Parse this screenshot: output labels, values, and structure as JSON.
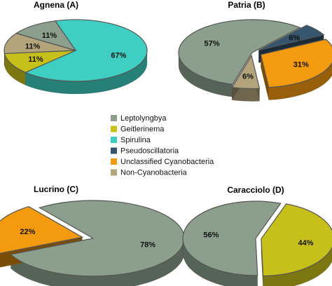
{
  "legend": [
    {
      "name": "Leptolyngbya",
      "color": "#8b9f8c"
    },
    {
      "name": "Geitlerinema",
      "color": "#c8c01a"
    },
    {
      "name": "Spirulina",
      "color": "#3ecfc2"
    },
    {
      "name": "Pseudoscillatoria",
      "color": "#35566e"
    },
    {
      "name": "Unclassified Cyanobacteria",
      "color": "#f39a0e"
    },
    {
      "name": "Non-Cyanobacteria",
      "color": "#b4a47c"
    }
  ],
  "chart_data": [
    {
      "type": "pie",
      "title": "Agnena (A)",
      "slices": [
        {
          "category": "Spirulina",
          "value": 67,
          "label": "67%"
        },
        {
          "category": "Geitlerinema",
          "value": 11,
          "label": "11%"
        },
        {
          "category": "Non-Cyanobacteria",
          "value": 11,
          "label": "11%"
        },
        {
          "category": "Leptolyngbya",
          "value": 11,
          "label": "11%"
        }
      ]
    },
    {
      "type": "pie",
      "title": "Patria (B)",
      "slices": [
        {
          "category": "Leptolyngbya",
          "value": 57,
          "label": "57%"
        },
        {
          "category": "Pseudoscillatoria",
          "value": 6,
          "label": "6%"
        },
        {
          "category": "Unclassified Cyanobacteria",
          "value": 31,
          "label": "31%"
        },
        {
          "category": "Non-Cyanobacteria",
          "value": 6,
          "label": "6%"
        }
      ]
    },
    {
      "type": "pie",
      "title": "Lucrino (C)",
      "slices": [
        {
          "category": "Leptolyngbya",
          "value": 78,
          "label": "78%"
        },
        {
          "category": "Unclassified Cyanobacteria",
          "value": 22,
          "label": "22%"
        }
      ]
    },
    {
      "type": "pie",
      "title": "Caracciolo (D)",
      "slices": [
        {
          "category": "Geitlerinema",
          "value": 44,
          "label": "44%"
        },
        {
          "category": "Leptolyngbya",
          "value": 56,
          "label": "56%"
        }
      ]
    }
  ]
}
